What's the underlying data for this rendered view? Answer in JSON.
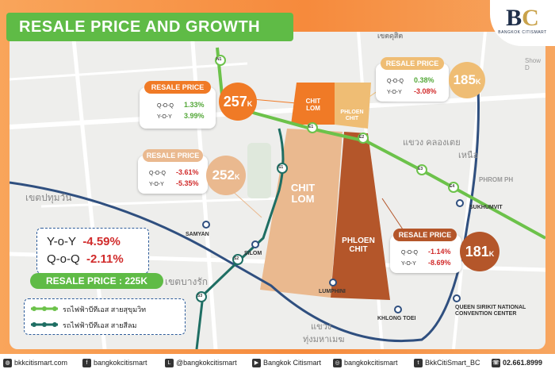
{
  "title": "RESALE PRICE AND GROWTH",
  "logo": {
    "mark_left": "B",
    "mark_right": "C",
    "tagline": "BANGKOK CITISMART"
  },
  "map_text": {
    "district_top": "เขตดุสิต",
    "district_left": "เขตปทุมวัน",
    "district_mid": "เขตบางรัก",
    "district_right": "แขวง คลองเตย",
    "district_right2": "เหนือ",
    "district_bottom": "แขวง",
    "district_bottom2": "ทุ่งมหาเมฆ",
    "road_right": "PHROM PH",
    "show_dc": "Show D"
  },
  "zones": [
    {
      "name": "chit-lom-small",
      "label": "CHIT\nLOM",
      "color": "#f07a26"
    },
    {
      "name": "phloen-chit-small",
      "label": "PHLOEN\nCHIT",
      "color": "#efbd74"
    },
    {
      "name": "chit-lom-large",
      "label": "CHIT\nLOM",
      "color": "#eab98f"
    },
    {
      "name": "phloen-chit-large",
      "label": "PHLOEN\nCHIT",
      "color": "#b4562a"
    }
  ],
  "cards": [
    {
      "name": "card-chitlom-small",
      "header": "RESALE PRICE",
      "qoq_key": "Q-O-Q",
      "qoq": "1.33%",
      "qoq_sign": "pos",
      "yoy_key": "Y-O-Y",
      "yoy": "3.99%",
      "yoy_sign": "pos",
      "price": "257",
      "unit": "K",
      "color": "#f07a26",
      "header_color": "#f07a26"
    },
    {
      "name": "card-phloenchit-small",
      "header": "RESALE PRICE",
      "qoq_key": "Q-O-Q",
      "qoq": "0.38%",
      "qoq_sign": "pos",
      "yoy_key": "Y-O-Y",
      "yoy": "-3.08%",
      "yoy_sign": "neg",
      "price": "185",
      "unit": "K",
      "color": "#efbd74",
      "header_color": "#efbd74"
    },
    {
      "name": "card-chitlom-large",
      "header": "RESALE PRICE",
      "qoq_key": "Q-O-Q",
      "qoq": "-3.61%",
      "qoq_sign": "neg",
      "yoy_key": "Y-O-Y",
      "yoy": "-5.35%",
      "yoy_sign": "neg",
      "price": "252",
      "unit": "K",
      "color": "#eab98f",
      "header_color": "#eab98f"
    },
    {
      "name": "card-phloenchit-large",
      "header": "RESALE PRICE",
      "qoq_key": "Q-O-Q",
      "qoq": "-1.14%",
      "qoq_sign": "neg",
      "yoy_key": "Y-O-Y",
      "yoy": "-8.69%",
      "yoy_sign": "neg",
      "price": "181",
      "unit": "K",
      "color": "#b4562a",
      "header_color": "#b4562a"
    }
  ],
  "stations": {
    "n1": "N1",
    "e1": "E1",
    "e2": "E2",
    "e3": "E3",
    "e4": "E4",
    "s1": "S1",
    "s2": "S2",
    "s3": "S3",
    "samyan": "SAMYAN",
    "silom": "SILOM",
    "lumphini": "LUMPHINI",
    "khlong_toei": "KHLONG TOEI",
    "sukhumvit": "SUKHUMVIT",
    "qsncc": "QUEEN SIRIKIT NATIONAL\nCONVENTION CENTER"
  },
  "summary": {
    "yoy_label": "Y-o-Y",
    "yoy": "-4.59%",
    "qoq_label": "Q-o-Q",
    "qoq": "-2.11%"
  },
  "resale_total": "RESALE PRICE : 225K",
  "legend": {
    "bts": "รถไฟฟ้าบีทีเอส สายสุขุมวิท",
    "bts_color": "#6cc24a",
    "bts_silom": "รถไฟฟ้าบีทีเอส สายสีลม",
    "bts_silom_color": "#1e6e63",
    "mrt_color": "#2f4f7f"
  },
  "footer": {
    "web": "bkkcitismart.com",
    "facebook": "bangkokcitismart",
    "line": "@bangkokcitismart",
    "youtube": "Bangkok Citismart",
    "instagram": "bangkokcitismart",
    "twitter": "BkkCitiSmart_BC",
    "phone": "02.661.8999"
  }
}
